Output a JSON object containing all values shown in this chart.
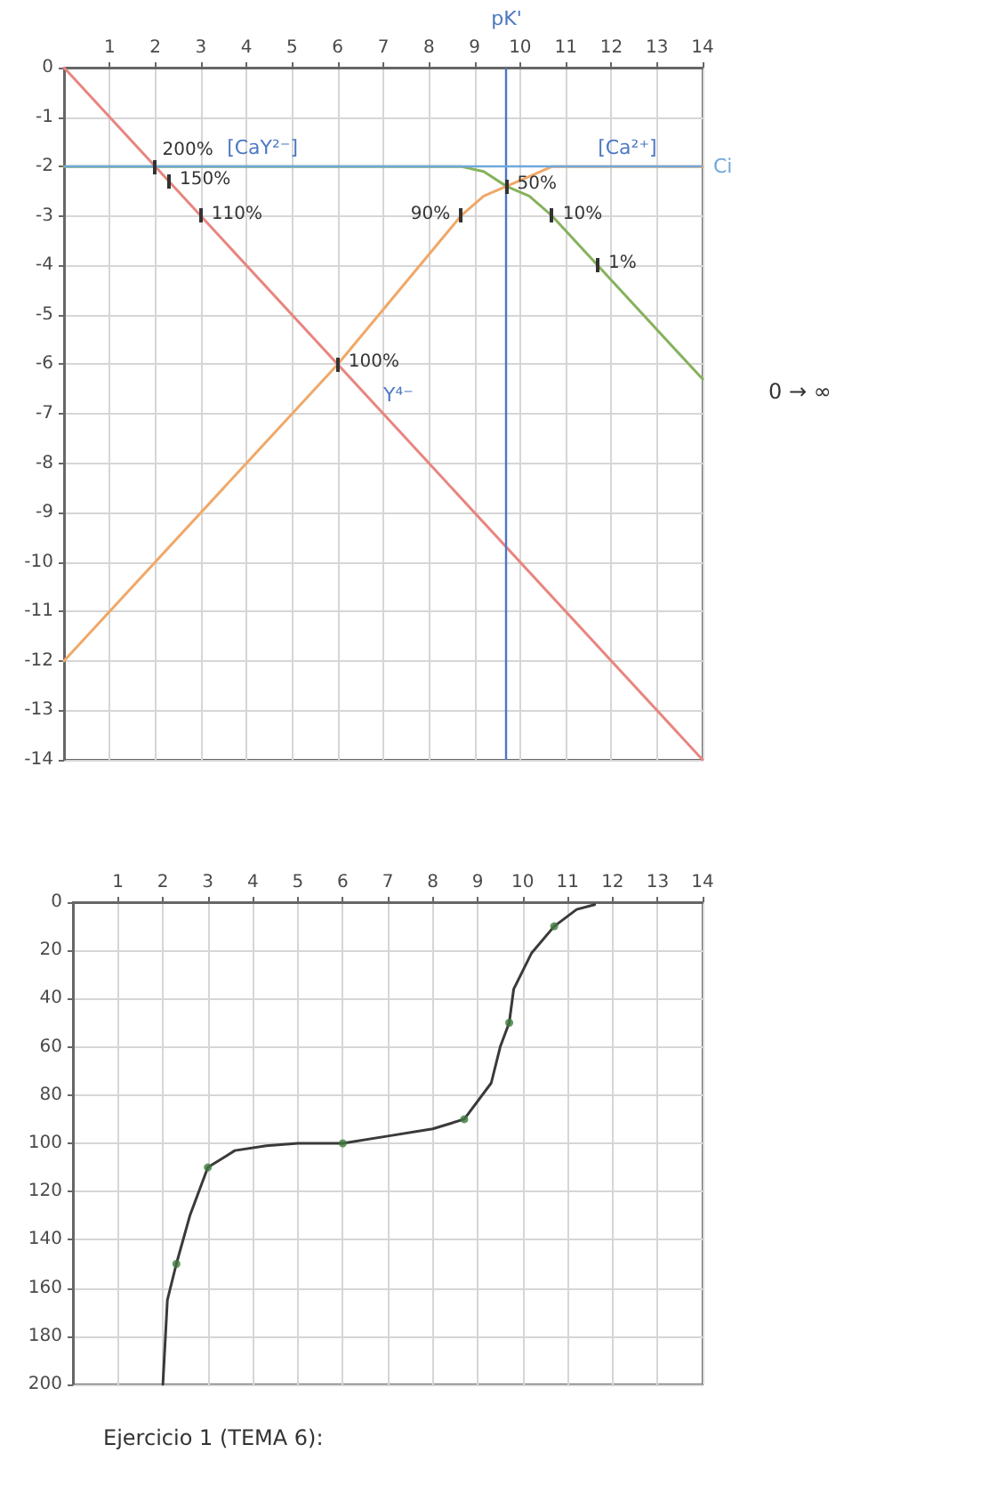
{
  "chart_data": [
    {
      "type": "line",
      "xlim": [
        0,
        14
      ],
      "xticks": [
        1,
        2,
        3,
        4,
        5,
        6,
        7,
        8,
        9,
        10,
        11,
        12,
        13,
        14
      ],
      "ylim": [
        -14,
        0
      ],
      "yticks": [
        0,
        -1,
        -2,
        -3,
        -4,
        -5,
        -6,
        -7,
        -8,
        -9,
        -10,
        -11,
        -12,
        -13,
        -14
      ],
      "grid": true,
      "series": [
        {
          "name": "[CaY²⁻]",
          "color": "#86b25c",
          "x": [
            0,
            8.7,
            9.2,
            9.7,
            10.2,
            10.7,
            11.7,
            14
          ],
          "values": [
            -2,
            -2,
            -2.1,
            -2.4,
            -2.6,
            -3,
            -4,
            -6.3
          ]
        },
        {
          "name": "[Ca²⁺]",
          "color": "#f0a868",
          "x": [
            0,
            6,
            8.7,
            9.2,
            9.7,
            10.2,
            10.7,
            14
          ],
          "values": [
            -12,
            -6,
            -3,
            -2.6,
            -2.4,
            -2.2,
            -2,
            -2
          ]
        },
        {
          "name": "Y⁴⁻",
          "color": "#e8857f",
          "x": [
            0,
            14
          ],
          "values": [
            0,
            -14
          ]
        }
      ],
      "ref_lines": [
        {
          "axis": "x",
          "value": 9.7,
          "label": "pK'",
          "color": "#4a78c0"
        },
        {
          "axis": "y",
          "value": -2,
          "label": "Ci",
          "color": "#6fa8dc"
        }
      ],
      "annotations": [
        {
          "text": "200%",
          "x": 2,
          "y": -2
        },
        {
          "text": "150%",
          "x": 2.3,
          "y": -2.3
        },
        {
          "text": "110%",
          "x": 3,
          "y": -3
        },
        {
          "text": "100%",
          "x": 6,
          "y": -6
        },
        {
          "text": "90%",
          "x": 8.7,
          "y": -3
        },
        {
          "text": "50%",
          "x": 9.7,
          "y": -2.4
        },
        {
          "text": "10%",
          "x": 10.7,
          "y": -3
        },
        {
          "text": "1%",
          "x": 11.7,
          "y": -4
        },
        "0 → ∞"
      ]
    },
    {
      "type": "line",
      "xlim": [
        0,
        14
      ],
      "xticks": [
        1,
        2,
        3,
        4,
        5,
        6,
        7,
        8,
        9,
        10,
        11,
        12,
        13,
        14
      ],
      "ylim": [
        200,
        0
      ],
      "yticks": [
        0,
        20,
        40,
        60,
        80,
        100,
        120,
        140,
        160,
        180,
        200
      ],
      "grid": true,
      "series": [
        {
          "color": "#3a3a3a",
          "x": [
            2,
            2.1,
            2.3,
            2.6,
            3,
            3.6,
            4.3,
            5,
            6,
            7,
            8,
            8.7,
            9.3,
            9.5,
            9.7,
            9.8,
            10.2,
            10.7,
            11.2,
            11.6
          ],
          "values": [
            200,
            165,
            150,
            130,
            110,
            103,
            101,
            100,
            100,
            97,
            94,
            90,
            75,
            60,
            50,
            36,
            21,
            10,
            3,
            1
          ]
        },
        {
          "type": "scatter",
          "marker": "circle",
          "color": "#3f7a3f",
          "x": [
            2.3,
            3,
            6,
            8.7,
            9.7,
            10.7
          ],
          "values": [
            150,
            110,
            100,
            90,
            50,
            10
          ]
        }
      ],
      "annotations": [
        "Ejercicio 1 (TEMA 6):"
      ]
    }
  ]
}
